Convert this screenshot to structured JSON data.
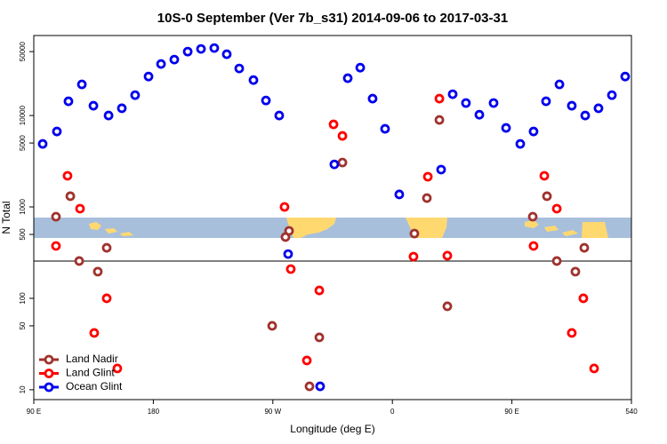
{
  "chart_data": {
    "type": "scatter",
    "title": "10S-0 September (Ver 7b_s31)   2014-09-06 to 2017-03-31",
    "x_label": "Longitude (deg E)",
    "y_label": "N Total",
    "xlim": [
      90,
      540
    ],
    "xticks": [
      {
        "value": 90,
        "label": "90 E"
      },
      180,
      {
        "value": 270,
        "label": "90 W"
      },
      {
        "value": 360,
        "label": "0"
      },
      {
        "value": 450,
        "label": "90 E"
      },
      540
    ],
    "ylim": [
      7.8,
      75000
    ],
    "log_y": true,
    "yticks": [
      10,
      50,
      100,
      500,
      1000,
      5000,
      10000,
      50000
    ],
    "legend": "lower left",
    "series": [
      {
        "name": "Land Nadir",
        "color": "#a0322d",
        "x": [
          106.7,
          117.5,
          124.2,
          138.2,
          144.9,
          269.5,
          282.2,
          279.5,
          305,
          297.6,
          322.4,
          395.4,
          386,
          376.6,
          401.4,
          465.7,
          476.4,
          483.8,
          497.8,
          504.5
        ],
        "values": [
          782,
          1310,
          256,
          196,
          357,
          50,
          547,
          468,
          37.4,
          10.9,
          3060,
          8940,
          1250,
          511,
          81.8,
          782,
          1310,
          256,
          196,
          357
        ]
      },
      {
        "name": "Land Glint",
        "color": "#ff0000",
        "x": [
          115.4,
          124.8,
          106.7,
          144.9,
          135.5,
          152.9,
          278.8,
          283.5,
          305,
          295.6,
          315.7,
          322.4,
          386.7,
          395.4,
          375.9,
          401.4,
          474.4,
          483.8,
          466.3,
          503.8,
          495.1,
          511.9
        ],
        "values": [
          2190,
          957,
          374,
          100,
          41.8,
          17.1,
          1000,
          209,
          122,
          20.9,
          8000,
          5980,
          2140,
          15300,
          286,
          293,
          2190,
          957,
          374,
          100,
          41.8,
          17.1
        ]
      },
      {
        "name": "Ocean Glint",
        "color": "#0000ee",
        "x": [
          96.7,
          107.4,
          116.1,
          126.2,
          134.9,
          146.3,
          156.3,
          166.3,
          176.4,
          185.8,
          195.8,
          205.9,
          215.9,
          225.9,
          235.3,
          244.7,
          255.4,
          264.8,
          274.8,
          281.5,
          305.6,
          316.3,
          326.4,
          335.8,
          345.1,
          354.5,
          365.2,
          396.7,
          405.4,
          415.4,
          425.5,
          436.2,
          445.6,
          456.3,
          466.3,
          475.7,
          485.8,
          495.1,
          505.2,
          515.2,
          525.3,
          535.3
        ],
        "values": [
          4890,
          6690,
          14300,
          21900,
          12800,
          10000,
          12000,
          16700,
          26700,
          36600,
          40900,
          50000,
          53500,
          54700,
          46800,
          32700,
          24400,
          14600,
          10000,
          305,
          10.9,
          2920,
          25600,
          33400,
          15300,
          7150,
          1370,
          2560,
          17100,
          13700,
          10200,
          13700,
          7310,
          4890,
          6690,
          14300,
          21900,
          12800,
          10000,
          12000,
          16700,
          26700
        ]
      }
    ]
  }
}
